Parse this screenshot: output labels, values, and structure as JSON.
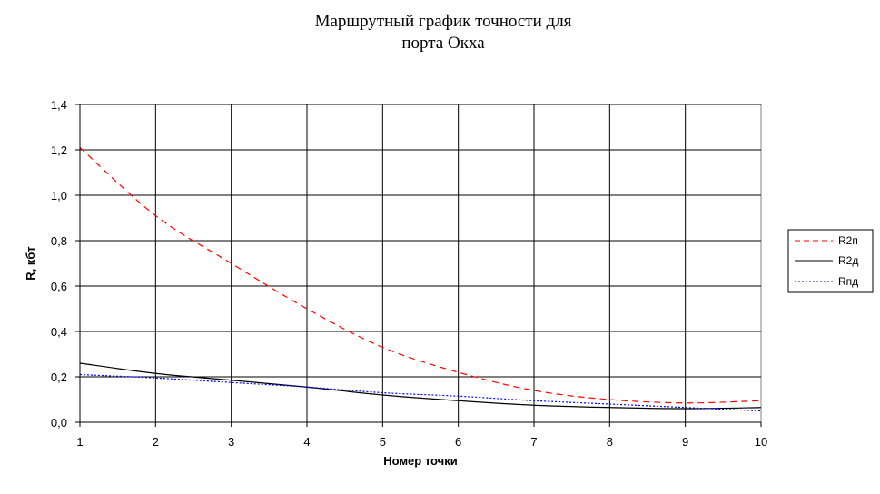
{
  "chart_data": {
    "type": "line",
    "title_lines": [
      "Маршрутный график точности для",
      "порта Окха"
    ],
    "xlabel": "Номер точки",
    "ylabel": "R, кбт",
    "x": [
      1,
      2,
      3,
      4,
      5,
      6,
      7,
      8,
      9,
      10
    ],
    "xlim": [
      1,
      10
    ],
    "ylim": [
      0,
      1.4
    ],
    "x_ticks": [
      "1",
      "2",
      "3",
      "4",
      "5",
      "6",
      "7",
      "8",
      "9",
      "10"
    ],
    "y_ticks": [
      "0,0",
      "0,2",
      "0,4",
      "0,6",
      "0,8",
      "1,0",
      "1,2",
      "1,4"
    ],
    "y_tick_values": [
      0,
      0.2,
      0.4,
      0.6,
      0.8,
      1.0,
      1.2,
      1.4
    ],
    "grid": true,
    "legend_position": "right",
    "series": [
      {
        "name": "R2п",
        "color": "#ff0000",
        "dash": "dashed",
        "values": [
          1.21,
          0.91,
          0.7,
          0.5,
          0.33,
          0.22,
          0.14,
          0.1,
          0.085,
          0.095
        ]
      },
      {
        "name": "R2д",
        "color": "#000000",
        "dash": "solid",
        "values": [
          0.26,
          0.215,
          0.185,
          0.155,
          0.12,
          0.095,
          0.075,
          0.065,
          0.06,
          0.065
        ]
      },
      {
        "name": "Rпд",
        "color": "#0000ff",
        "dash": "dotted",
        "values": [
          0.21,
          0.195,
          0.175,
          0.155,
          0.13,
          0.115,
          0.095,
          0.08,
          0.065,
          0.05
        ]
      }
    ]
  }
}
